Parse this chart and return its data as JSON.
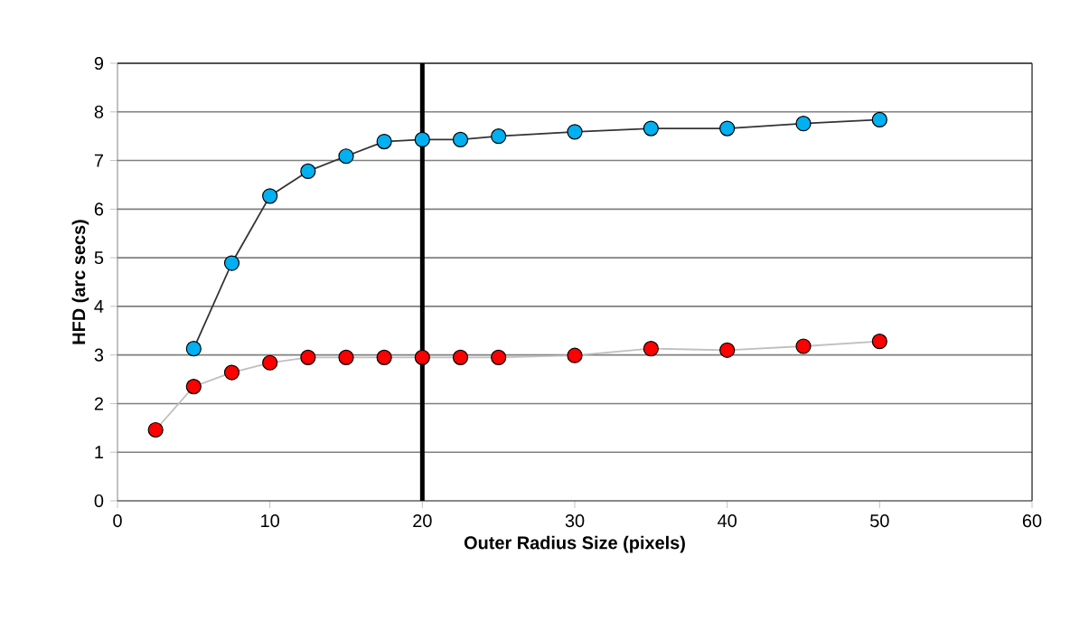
{
  "chart_data": {
    "type": "line",
    "xlabel": "Outer Radius Size (pixels)",
    "ylabel": "HFD (arc secs)",
    "xlim": [
      0,
      60
    ],
    "xticks": [
      0,
      10,
      20,
      30,
      40,
      50,
      60
    ],
    "ylim": [
      0,
      9
    ],
    "yticks": [
      0,
      1,
      2,
      3,
      4,
      5,
      6,
      7,
      8,
      9
    ],
    "grid": "y",
    "marker": "circle",
    "line_style": "solid",
    "ref_lines": [
      {
        "axis": "x",
        "value": 20,
        "color": "#000000"
      }
    ],
    "series": [
      {
        "color": "#00b0f0",
        "x": [
          5,
          7.5,
          10,
          12.5,
          15,
          17.5,
          20,
          22.5,
          25,
          30,
          35,
          40,
          45,
          50
        ],
        "values": [
          3.13,
          4.89,
          6.27,
          6.78,
          7.09,
          7.39,
          7.43,
          7.43,
          7.5,
          7.59,
          7.66,
          7.66,
          7.76,
          7.84
        ]
      },
      {
        "color": "#ff0000",
        "x": [
          2.5,
          5,
          7.5,
          10,
          12.5,
          15,
          17.5,
          20,
          22.5,
          25,
          30,
          35,
          40,
          45,
          50
        ],
        "values": [
          1.46,
          2.35,
          2.64,
          2.84,
          2.95,
          2.95,
          2.95,
          2.95,
          2.95,
          2.95,
          2.99,
          3.13,
          3.1,
          3.18,
          3.28
        ]
      }
    ]
  }
}
